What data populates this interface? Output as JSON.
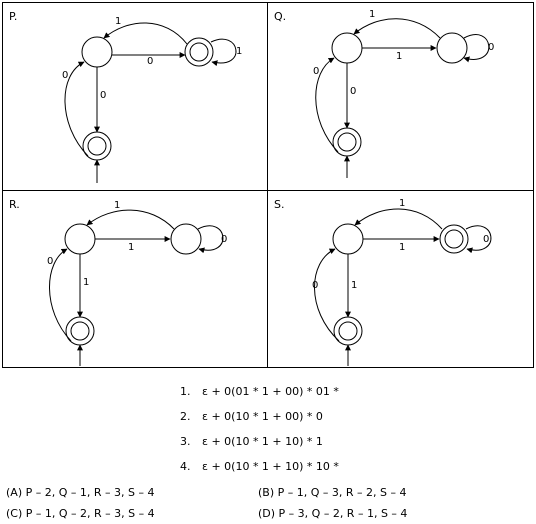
{
  "panels": [
    {
      "name": "P.",
      "edges": {
        "top": "1",
        "horizontal": "0",
        "self_loop": "1",
        "vertical": "0",
        "left": "0"
      }
    },
    {
      "name": "Q.",
      "edges": {
        "top": "1",
        "horizontal": "1",
        "self_loop": "0",
        "vertical": "0",
        "left": "0"
      }
    },
    {
      "name": "R.",
      "edges": {
        "top": "1",
        "horizontal": "1",
        "self_loop": "0",
        "vertical": "1",
        "left": "0"
      }
    },
    {
      "name": "S.",
      "edges": {
        "top": "1",
        "horizontal": "1",
        "self_loop": "0",
        "vertical": "1",
        "left": "0"
      }
    }
  ],
  "expressions": [
    {
      "num": "1.",
      "text": "ε + 0(01 * 1 + 00) * 01 *"
    },
    {
      "num": "2.",
      "text": "ε + 0(10 * 1 + 00) * 0"
    },
    {
      "num": "3.",
      "text": "ε + 0(10 * 1 + 10) * 1"
    },
    {
      "num": "4.",
      "text": "ε + 0(10 * 1 + 10) * 10 *"
    }
  ],
  "options": [
    {
      "text": "(A)  P – 2,  Q – 1,  R – 3,  S – 4"
    },
    {
      "text": "(B)  P – 1,  Q – 3,  R – 2,  S – 4"
    },
    {
      "text": "(C)  P – 1,  Q – 2,  R – 3,  S – 4"
    },
    {
      "text": "(D)  P – 3,  Q – 2,  R – 1,  S – 4"
    }
  ]
}
